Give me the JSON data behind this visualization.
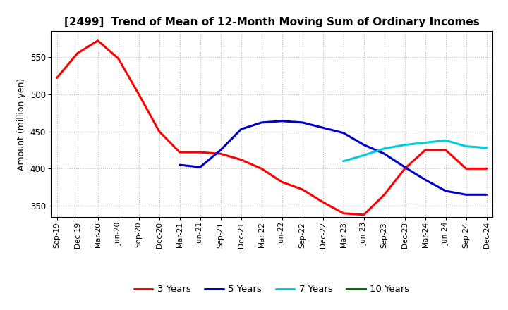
{
  "title": "[2499]  Trend of Mean of 12-Month Moving Sum of Ordinary Incomes",
  "ylabel": "Amount (million yen)",
  "background_color": "#ffffff",
  "grid_color": "#bbbbbb",
  "xlabels": [
    "Sep-19",
    "Dec-19",
    "Mar-20",
    "Jun-20",
    "Sep-20",
    "Dec-20",
    "Mar-21",
    "Jun-21",
    "Sep-21",
    "Dec-21",
    "Mar-22",
    "Jun-22",
    "Sep-22",
    "Dec-22",
    "Mar-23",
    "Jun-23",
    "Sep-23",
    "Dec-23",
    "Mar-24",
    "Jun-24",
    "Sep-24",
    "Dec-24"
  ],
  "ylim": [
    335,
    585
  ],
  "yticks": [
    350,
    400,
    450,
    500,
    550
  ],
  "series": {
    "3 Years": {
      "color": "#ff0000",
      "data": [
        522,
        555,
        572,
        548,
        500,
        450,
        422,
        422,
        420,
        412,
        400,
        382,
        372,
        355,
        340,
        338,
        365,
        400,
        425,
        425,
        400,
        400
      ]
    },
    "5 Years": {
      "color": "#0000cc",
      "data": [
        null,
        null,
        null,
        null,
        null,
        null,
        405,
        402,
        425,
        453,
        462,
        464,
        462,
        455,
        448,
        432,
        420,
        402,
        385,
        370,
        365,
        365
      ]
    },
    "7 Years": {
      "color": "#00ccdd",
      "data": [
        null,
        null,
        null,
        null,
        null,
        null,
        null,
        null,
        null,
        null,
        null,
        null,
        null,
        null,
        410,
        418,
        427,
        432,
        435,
        438,
        430,
        428
      ]
    },
    "10 Years": {
      "color": "#007700",
      "data": [
        null,
        null,
        null,
        null,
        null,
        null,
        null,
        null,
        null,
        null,
        null,
        null,
        null,
        null,
        null,
        null,
        null,
        null,
        null,
        null,
        null,
        null
      ]
    }
  },
  "legend_order": [
    "3 Years",
    "5 Years",
    "7 Years",
    "10 Years"
  ]
}
